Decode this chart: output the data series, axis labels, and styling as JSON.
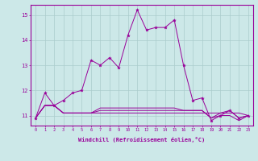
{
  "xlabel": "Windchill (Refroidissement éolien,°C)",
  "bg_color": "#cce8e8",
  "line_color": "#990099",
  "grid_color": "#aacccc",
  "series1": [
    10.9,
    11.9,
    11.4,
    11.6,
    11.9,
    12.0,
    13.2,
    13.0,
    13.3,
    12.9,
    14.2,
    15.2,
    14.4,
    14.5,
    14.5,
    14.8,
    13.0,
    11.6,
    11.7,
    10.8,
    11.0,
    11.2,
    10.9,
    11.0
  ],
  "series2": [
    10.9,
    11.4,
    11.4,
    11.1,
    11.1,
    11.1,
    11.1,
    11.1,
    11.1,
    11.1,
    11.1,
    11.1,
    11.1,
    11.1,
    11.1,
    11.1,
    11.1,
    11.1,
    11.1,
    11.1,
    11.1,
    11.1,
    11.1,
    11.0
  ],
  "series3": [
    10.9,
    11.4,
    11.4,
    11.1,
    11.1,
    11.1,
    11.1,
    11.2,
    11.2,
    11.2,
    11.2,
    11.2,
    11.2,
    11.2,
    11.2,
    11.2,
    11.2,
    11.2,
    11.2,
    10.9,
    11.0,
    11.0,
    10.8,
    11.0
  ],
  "series4": [
    10.9,
    11.4,
    11.4,
    11.1,
    11.1,
    11.1,
    11.1,
    11.3,
    11.3,
    11.3,
    11.3,
    11.3,
    11.3,
    11.3,
    11.3,
    11.3,
    11.2,
    11.2,
    11.2,
    10.9,
    11.1,
    11.2,
    10.9,
    11.0
  ],
  "ylim": [
    10.6,
    15.4
  ],
  "yticks": [
    11,
    12,
    13,
    14,
    15
  ],
  "xticks": [
    0,
    1,
    2,
    3,
    4,
    5,
    6,
    7,
    8,
    9,
    10,
    11,
    12,
    13,
    14,
    15,
    16,
    17,
    18,
    19,
    20,
    21,
    22,
    23
  ]
}
